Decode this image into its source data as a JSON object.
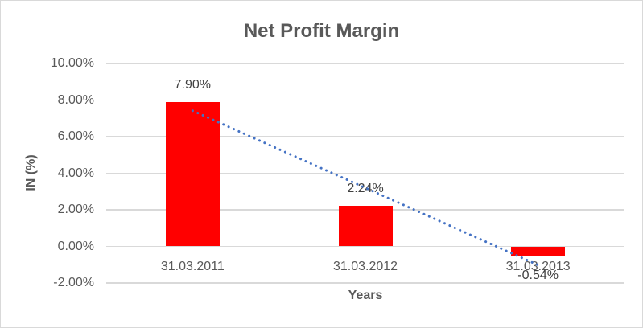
{
  "chart_data": {
    "type": "bar",
    "title": "Net Profit Margin",
    "xlabel": "Years",
    "ylabel": "IN (%)",
    "categories": [
      "31.03.2011",
      "31.03.2012",
      "31.03.2013"
    ],
    "values": [
      7.9,
      2.24,
      -0.54
    ],
    "data_labels": [
      "7.90%",
      "2.24%",
      "-0.54%"
    ],
    "ytick_labels": [
      "10.00%",
      "8.00%",
      "6.00%",
      "4.00%",
      "2.00%",
      "0.00%",
      "-2.00%"
    ],
    "ylim": [
      -2,
      10
    ],
    "ytick_interval": 2,
    "grid": true,
    "legend": "none",
    "trendline": {
      "type": "linear",
      "style": "dotted"
    },
    "colors": {
      "bar": "#ff0000",
      "trendline": "#4472c4",
      "gridline": "#d9d9d9",
      "title_text": "#595959",
      "tick_text": "#595959",
      "data_label_text": "#404040",
      "chart_border": "#d9d9d9",
      "background": "#ffffff"
    }
  }
}
